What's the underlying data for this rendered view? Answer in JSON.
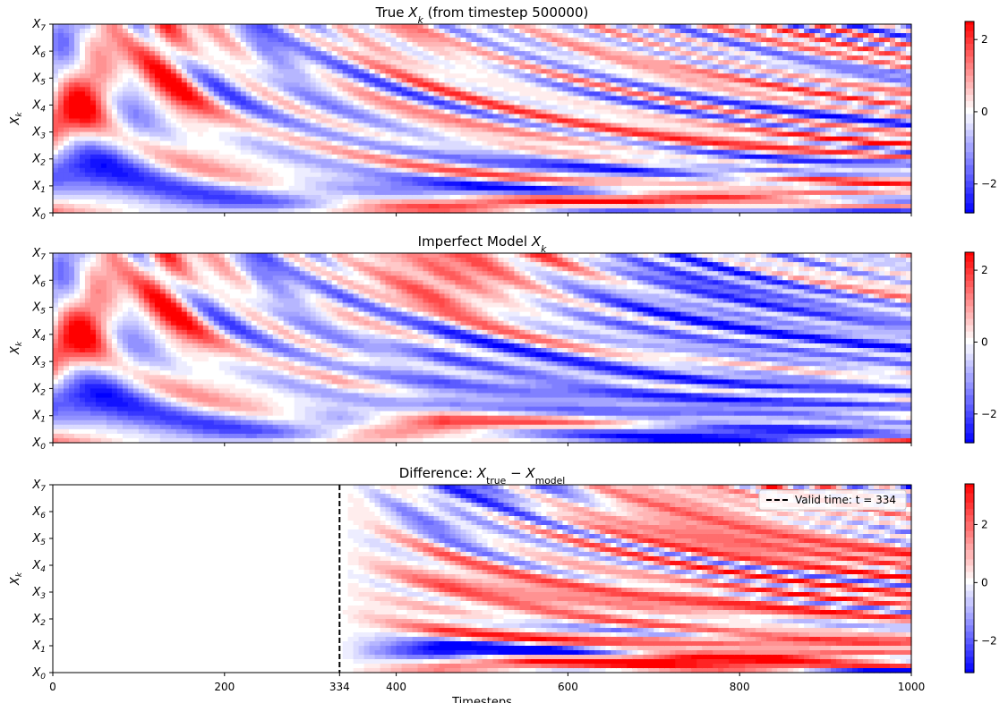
{
  "chart_data": [
    {
      "type": "heatmap",
      "title": "True X_k (from timestep 500000)",
      "title_parts": [
        {
          "t": "True ",
          "style": "normal"
        },
        {
          "t": "X",
          "style": "italic"
        },
        {
          "t": "k",
          "style": "italic-sub"
        },
        {
          "t": " (from timestep 500000)",
          "style": "normal"
        }
      ],
      "ylabel": "X_k",
      "x_range": [
        0,
        1000
      ],
      "y_range": [
        0,
        7
      ],
      "y_tick_labels": [
        "X0",
        "X1",
        "X2",
        "X3",
        "X4",
        "X5",
        "X6",
        "X7"
      ],
      "colorbar": {
        "range": [
          -2.8,
          2.5
        ],
        "ticks": [
          2,
          0,
          -2
        ],
        "tick_labels": [
          "2",
          "0",
          "−2"
        ]
      },
      "seed": 11,
      "pattern": "true"
    },
    {
      "type": "heatmap",
      "title": "Imperfect Model X_k",
      "title_parts": [
        {
          "t": "Imperfect Model ",
          "style": "normal"
        },
        {
          "t": "X",
          "style": "italic"
        },
        {
          "t": "k",
          "style": "italic-sub"
        }
      ],
      "ylabel": "X_k",
      "x_range": [
        0,
        1000
      ],
      "y_range": [
        0,
        7
      ],
      "y_tick_labels": [
        "X0",
        "X1",
        "X2",
        "X3",
        "X4",
        "X5",
        "X6",
        "X7"
      ],
      "colorbar": {
        "range": [
          -2.8,
          2.5
        ],
        "ticks": [
          2,
          0,
          -2
        ],
        "tick_labels": [
          "2",
          "0",
          "−2"
        ]
      },
      "seed": 11,
      "seed_after_divergence": 37,
      "diverge_at": 334,
      "pattern": "model"
    },
    {
      "type": "heatmap",
      "title": "Difference: X_true − X_model",
      "title_parts": [
        {
          "t": "Difference: ",
          "style": "normal"
        },
        {
          "t": "X",
          "style": "italic"
        },
        {
          "t": "true",
          "style": "sub"
        },
        {
          "t": " − ",
          "style": "normal"
        },
        {
          "t": "X",
          "style": "italic"
        },
        {
          "t": "model",
          "style": "sub"
        }
      ],
      "ylabel": "X_k",
      "xlabel": "Timesteps",
      "x_range": [
        0,
        1000
      ],
      "y_range": [
        0,
        7
      ],
      "x_ticks": [
        0,
        200,
        334,
        400,
        600,
        800,
        1000
      ],
      "x_tick_labels": [
        "0",
        "200",
        "334",
        "400",
        "600",
        "800",
        "1000"
      ],
      "y_tick_labels": [
        "X0",
        "X1",
        "X2",
        "X3",
        "X4",
        "X5",
        "X6",
        "X7"
      ],
      "colorbar": {
        "range": [
          -3.1,
          3.4
        ],
        "ticks": [
          2,
          0,
          -2
        ],
        "tick_labels": [
          "2",
          "0",
          "−2"
        ]
      },
      "vline": {
        "x": 334,
        "style": "dashed",
        "color": "#000000"
      },
      "legend": {
        "label": "Valid time: t = 334",
        "placement": "top-right"
      },
      "pattern": "difference"
    }
  ],
  "colors": {
    "high": "#ff0000",
    "mid": "#ffffff",
    "low": "#0000ff"
  }
}
